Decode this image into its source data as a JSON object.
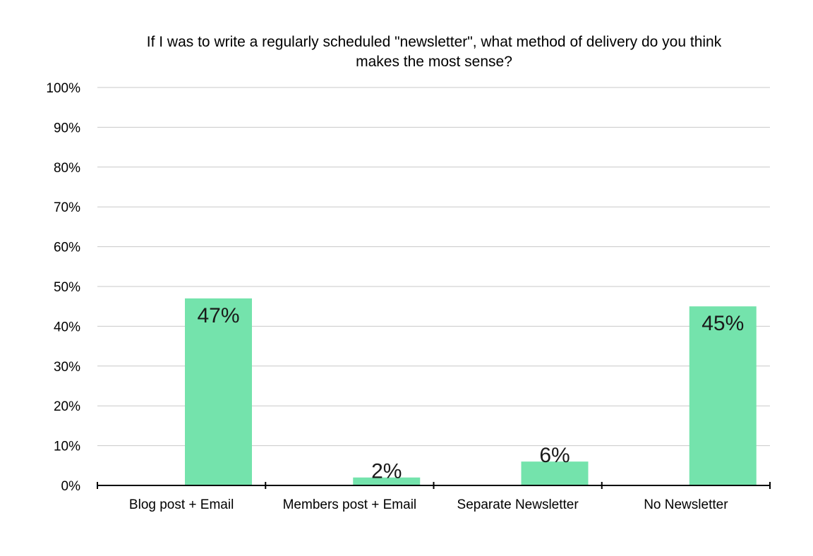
{
  "chart_data": {
    "type": "bar",
    "title_line1": "If I was to write a regularly scheduled \"newsletter\", what method of delivery do you think",
    "title_line2": "makes the most sense?",
    "categories": [
      "Blog post + Email",
      "Members post + Email",
      "Separate Newsletter",
      "No Newsletter"
    ],
    "values": [
      47,
      2,
      6,
      45
    ],
    "value_labels": [
      "47%",
      "2%",
      "6%",
      "45%"
    ],
    "ylim": [
      0,
      100
    ],
    "yticks": [
      "0%",
      "10%",
      "20%",
      "30%",
      "40%",
      "50%",
      "60%",
      "70%",
      "80%",
      "90%",
      "100%"
    ],
    "grid": true,
    "legend": "none",
    "bar_color": "#74e3ac"
  }
}
